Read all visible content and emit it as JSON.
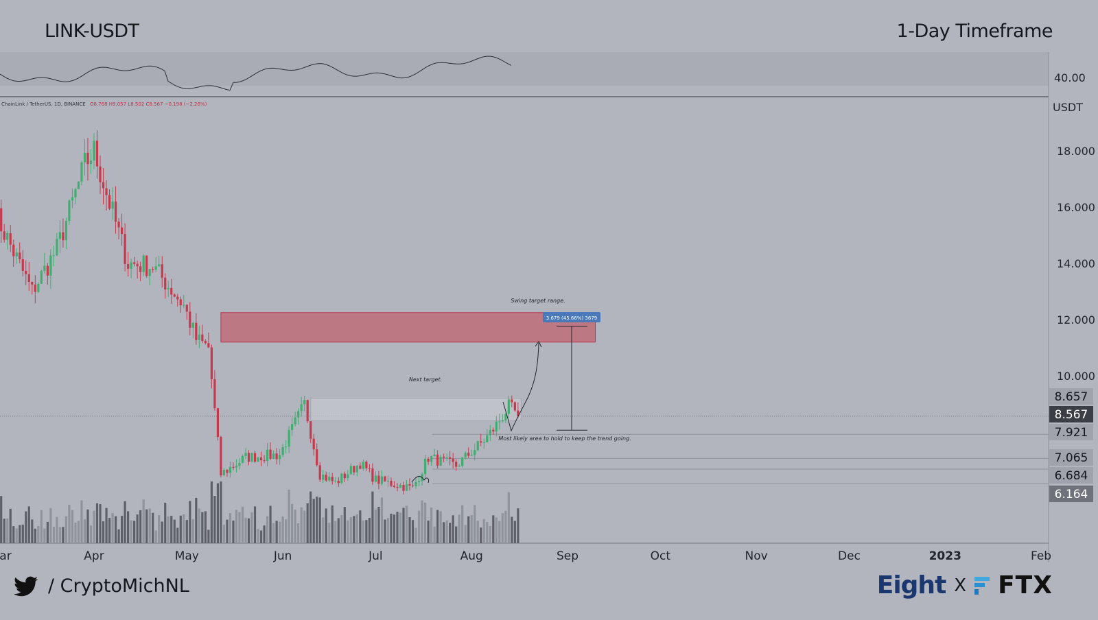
{
  "header": {
    "pair": "LINK-USDT",
    "timeframe": "1-Day Timeframe"
  },
  "legend_line": {
    "symbol": "ChainLink / TetherUS, 1D, BINANCE",
    "ohlc": "O8.768  H9.057  L8.502  C8.567  −0.198 (−2.26%)"
  },
  "indicator": {
    "level_label": "40.00"
  },
  "price_axis": {
    "unit": "USDT",
    "ticks": [
      "18.000",
      "16.000",
      "14.000",
      "12.000",
      "10.000"
    ]
  },
  "time_axis": [
    "ar",
    "Apr",
    "May",
    "Jun",
    "Jul",
    "Aug",
    "Sep",
    "Oct",
    "Nov",
    "Dec",
    "2023",
    "Feb"
  ],
  "price_badges": [
    {
      "value": "8.657",
      "style": "gray"
    },
    {
      "value": "8.567",
      "style": "dark"
    },
    {
      "value": "7.921",
      "style": "gray"
    },
    {
      "value": "7.065",
      "style": "gray"
    },
    {
      "value": "6.684",
      "style": "gray"
    },
    {
      "value": "6.164",
      "style": "mid"
    }
  ],
  "annotations": {
    "swing_target": "Swing target range.",
    "next_target": "Next target.",
    "hold_area": "Most likely area to hold to keep the trend going.",
    "measure": "3.679 (45.66%) 3679"
  },
  "footer": {
    "twitter": "/ CryptoMichNL",
    "brand_left": "Eight",
    "brand_sep": "X",
    "brand_right": "FTX"
  },
  "colors": {
    "up": "#3fae70",
    "down": "#c8384d",
    "zone_red": "#c0606a",
    "zone_gray": "#c3c5cc",
    "bg": "#b2b5be",
    "measure": "#4a78b8"
  },
  "chart_data": {
    "type": "candlestick",
    "price_range": [
      4.8,
      19.6
    ],
    "levels": [
      8.657,
      8.567,
      7.921,
      7.065,
      6.684,
      6.164
    ],
    "zones": [
      {
        "name": "swing target range",
        "low": 11.2,
        "high": 12.25,
        "from": "2022-05-12",
        "to": "2022-09-10"
      },
      {
        "name": "next target",
        "low": 8.4,
        "high": 9.2,
        "from": "2022-06-10",
        "to": "2022-08-17"
      }
    ],
    "current_price": 8.567,
    "ohlc_last": {
      "open": 8.768,
      "high": 9.057,
      "low": 8.502,
      "close": 8.567
    },
    "keypoints": [
      {
        "date": "2022-02-28",
        "close": 15.8
      },
      {
        "date": "2022-03-12",
        "close": 13.0
      },
      {
        "date": "2022-03-20",
        "close": 14.5
      },
      {
        "date": "2022-03-29",
        "close": 17.5
      },
      {
        "date": "2022-04-01",
        "close": 18.0
      },
      {
        "date": "2022-04-05",
        "close": 16.5
      },
      {
        "date": "2022-04-12",
        "close": 14.0
      },
      {
        "date": "2022-04-20",
        "close": 13.9
      },
      {
        "date": "2022-04-30",
        "close": 12.5
      },
      {
        "date": "2022-05-04",
        "close": 11.3
      },
      {
        "date": "2022-05-08",
        "close": 11.0
      },
      {
        "date": "2022-05-12",
        "close": 6.5
      },
      {
        "date": "2022-05-20",
        "close": 7.1
      },
      {
        "date": "2022-05-31",
        "close": 7.2
      },
      {
        "date": "2022-06-08",
        "close": 9.0
      },
      {
        "date": "2022-06-13",
        "close": 6.5
      },
      {
        "date": "2022-06-18",
        "close": 6.2
      },
      {
        "date": "2022-06-26",
        "close": 6.9
      },
      {
        "date": "2022-07-01",
        "close": 6.3
      },
      {
        "date": "2022-07-13",
        "close": 6.0
      },
      {
        "date": "2022-07-18",
        "close": 7.1
      },
      {
        "date": "2022-07-27",
        "close": 6.8
      },
      {
        "date": "2022-08-05",
        "close": 7.7
      },
      {
        "date": "2022-08-08",
        "close": 8.1
      },
      {
        "date": "2022-08-13",
        "close": 8.9
      },
      {
        "date": "2022-08-15",
        "close": 8.7
      },
      {
        "date": "2022-08-16",
        "close": 8.57
      }
    ]
  }
}
